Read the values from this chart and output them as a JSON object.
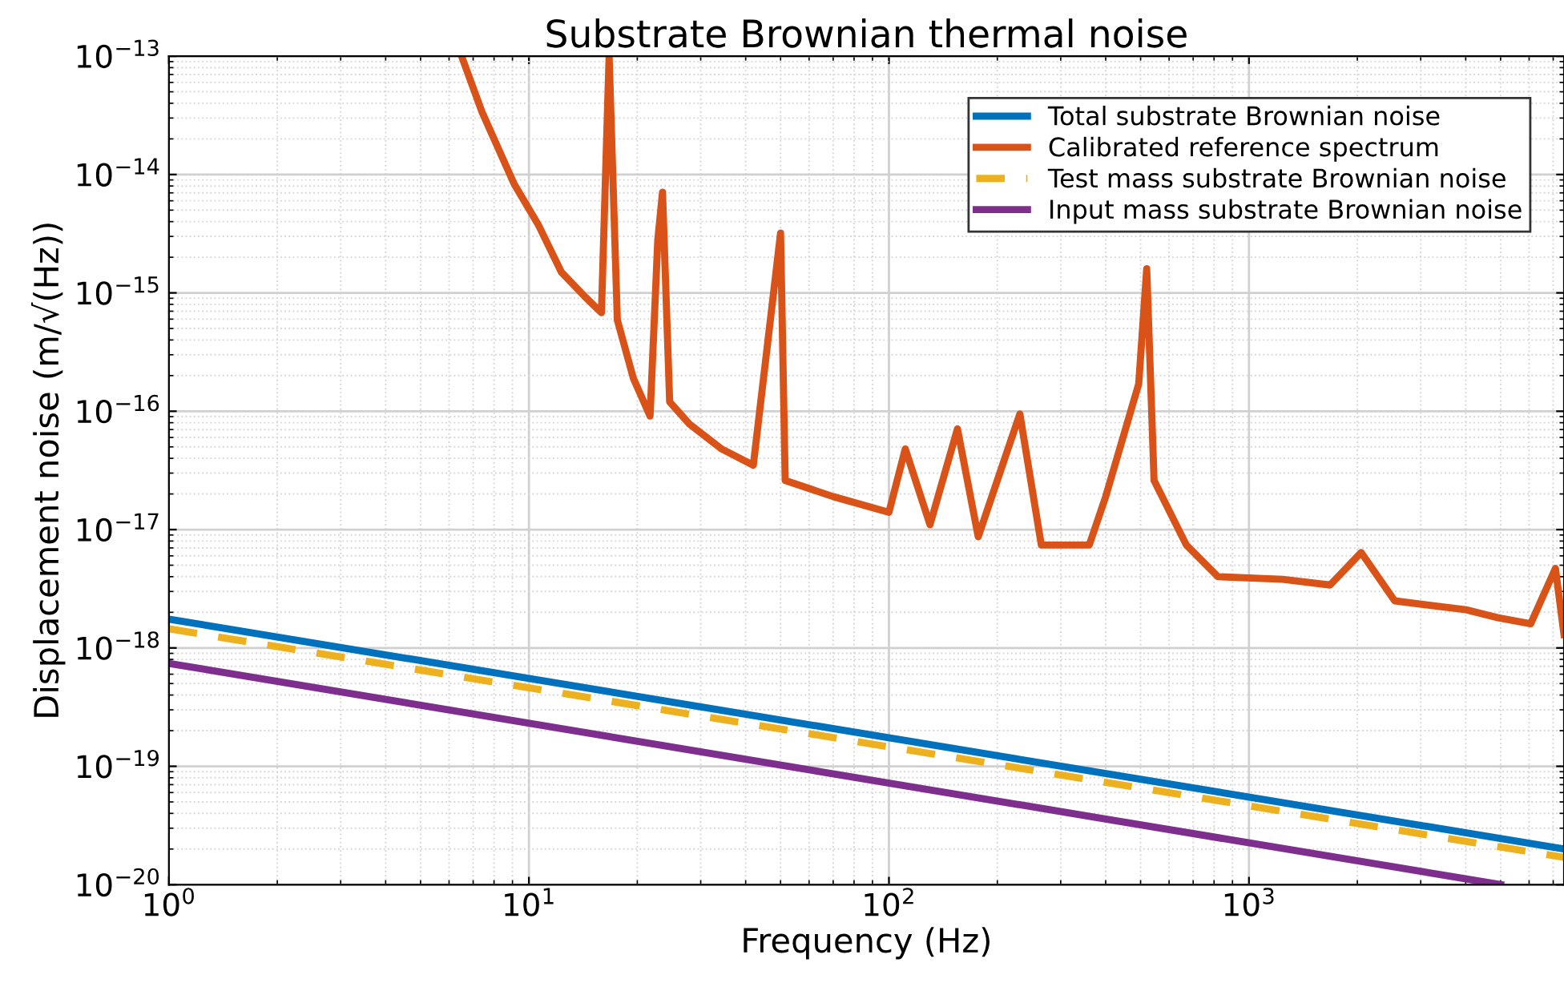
{
  "chart_data": {
    "type": "line",
    "title": "Substrate Brownian thermal noise",
    "xlabel": "Frequency (Hz)",
    "ylabel": "Displacement noise (m/√(Hz))",
    "log": "xy",
    "grid": true,
    "legend": "top right",
    "xlim": [
      1,
      7500
    ],
    "xticks": [
      {
        "value": 1,
        "label": "10$^{0}$"
      },
      {
        "value": 10,
        "label": "10$^{1}$"
      },
      {
        "value": 100,
        "label": "10$^{2}$"
      },
      {
        "value": 1000,
        "label": "10$^{3}$"
      }
    ],
    "ylim": [
      1e-20,
      1e-13
    ],
    "yticks": [
      {
        "value": 1e-20,
        "label": "10$^{−20}$"
      },
      {
        "value": 1e-19,
        "label": "10$^{−19}$"
      },
      {
        "value": 1e-18,
        "label": "10$^{−18}$"
      },
      {
        "value": 1e-17,
        "label": "10$^{−17}$"
      },
      {
        "value": 1e-16,
        "label": "10$^{−16}$"
      },
      {
        "value": 1e-15,
        "label": "10$^{−15}$"
      },
      {
        "value": 1e-14,
        "label": "10$^{−14}$"
      },
      {
        "value": 1e-13,
        "label": "10$^{−13}$"
      }
    ],
    "series": [
      {
        "name": "Total substrate Brownian noise",
        "color": "#0072bd",
        "x": [
          1,
          7500
        ],
        "values": [
          1.75e-18,
          2e-20
        ]
      },
      {
        "name": "Calibrated reference spectrum",
        "color": "#d95319",
        "x": [
          6.5,
          7.4,
          9.1,
          10.6,
          12.3,
          14.3,
          15.9,
          16.7,
          17.6,
          19.5,
          21.7,
          22.8,
          23.5,
          24.6,
          27.9,
          34.3,
          42,
          50,
          51.5,
          70,
          100,
          111,
          130,
          155,
          177,
          231,
          265,
          360,
          400,
          494,
          520,
          545,
          670,
          820,
          1240,
          1680,
          2050,
          2540,
          4010,
          4920,
          6060,
          7100,
          7500
        ],
        "values": [
          1e-13,
          3.4e-14,
          8.3e-15,
          3.8e-15,
          1.5e-15,
          9.3e-16,
          6.8e-16,
          1e-13,
          5.9e-16,
          1.9e-16,
          9.1e-17,
          2.8e-15,
          7.1e-15,
          1.2e-16,
          7.8e-17,
          4.8e-17,
          3.5e-17,
          3.2e-15,
          2.6e-17,
          1.9e-17,
          1.4e-17,
          4.8e-17,
          1.1e-17,
          7.1e-17,
          8.7e-18,
          9.5e-17,
          7.4e-18,
          7.4e-18,
          1.9e-17,
          1.7e-16,
          1.6e-15,
          2.6e-17,
          7.4e-18,
          4e-18,
          3.8e-18,
          3.4e-18,
          6.4e-18,
          2.5e-18,
          2.1e-18,
          1.8e-18,
          1.6e-18,
          4.7e-18,
          1.3e-18
        ]
      },
      {
        "name": "Test mass substrate Brownian noise",
        "color": "#edb120",
        "line_style": "dashed",
        "x": [
          1,
          7500
        ],
        "values": [
          1.45e-18,
          1.7e-20
        ]
      },
      {
        "name": "Input mass substrate Brownian noise",
        "color": "#7e2f8e",
        "x": [
          1,
          5000
        ],
        "values": [
          7.4e-19,
          1e-20
        ]
      }
    ]
  }
}
